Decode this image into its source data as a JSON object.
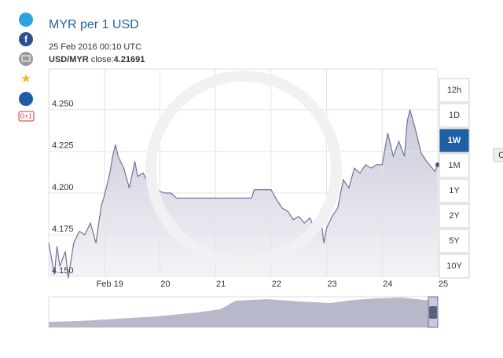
{
  "chart_data": {
    "type": "line",
    "title": "MYR per 1 USD",
    "subtitle": "25 Feb 2016 00:10 UTC",
    "close": {
      "pair": "USD/MYR",
      "text": "close:",
      "value": 4.21691
    },
    "x": [
      18.0,
      18.05,
      18.1,
      18.15,
      18.2,
      18.3,
      18.35,
      18.45,
      18.55,
      18.65,
      18.75,
      18.85,
      18.9,
      18.95,
      19.0,
      19.1,
      19.15,
      19.2,
      19.25,
      19.35,
      19.45,
      19.55,
      19.6,
      19.7,
      19.8,
      19.9,
      20.0,
      20.1,
      20.2,
      20.3,
      21.0,
      21.5,
      21.65,
      21.7,
      22.0,
      22.1,
      22.2,
      22.3,
      22.4,
      22.5,
      22.6,
      22.7,
      22.8,
      22.9,
      22.95,
      23.0,
      23.1,
      23.2,
      23.3,
      23.4,
      23.5,
      23.6,
      23.7,
      23.8,
      23.9,
      24.0,
      24.1,
      24.15,
      24.2,
      24.3,
      24.4,
      24.45,
      24.5,
      24.6,
      24.7,
      24.8,
      24.9,
      24.95,
      25.0
    ],
    "values": [
      4.17,
      4.161,
      4.151,
      4.168,
      4.156,
      4.165,
      4.149,
      4.17,
      4.177,
      4.175,
      4.182,
      4.17,
      4.182,
      4.193,
      4.198,
      4.212,
      4.222,
      4.229,
      4.222,
      4.215,
      4.203,
      4.219,
      4.21,
      4.212,
      4.205,
      4.203,
      4.201,
      4.2,
      4.2,
      4.197,
      4.197,
      4.197,
      4.197,
      4.202,
      4.202,
      4.196,
      4.191,
      4.189,
      4.184,
      4.186,
      4.182,
      4.185,
      4.177,
      4.184,
      4.17,
      4.179,
      4.186,
      4.191,
      4.208,
      4.203,
      4.215,
      4.212,
      4.217,
      4.215,
      4.217,
      4.217,
      4.236,
      4.229,
      4.222,
      4.231,
      4.222,
      4.243,
      4.25,
      4.238,
      4.224,
      4.219,
      4.215,
      4.213,
      4.217
    ],
    "color": "#6f7399",
    "xlim": [
      18.0,
      25.0
    ],
    "xticks": [
      {
        "value": 19,
        "label": "Feb 19"
      },
      20,
      21,
      22,
      23,
      24,
      25
    ],
    "ylim": [
      4.15,
      4.2744
    ],
    "yticks": [
      {
        "value": 4.15,
        "label": "4.150"
      },
      4.175,
      {
        "value": 4.2,
        "label": "4.200"
      },
      4.225,
      {
        "value": 4.25,
        "label": "4.250"
      }
    ],
    "grid": true
  },
  "range_buttons": [
    "12h",
    "1D",
    "1W",
    "1M",
    "1Y",
    "2Y",
    "5Y",
    "10Y"
  ],
  "active_range": 2,
  "share": {
    "google_plus": "G+1"
  },
  "side_tab": "C"
}
